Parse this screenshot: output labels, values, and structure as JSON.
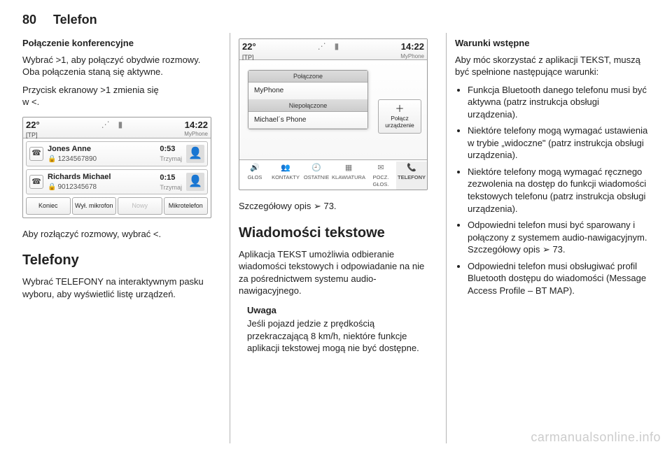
{
  "header": {
    "pagenum": "80",
    "title": "Telefon"
  },
  "col1": {
    "h_conference": "Połączenie konferencyjne",
    "p_conf1_a": "Wybrać ",
    "p_conf1_sym": ">1",
    "p_conf1_b": ", aby połączyć obydwie rozmowy. Oba połączenia staną się aktywne.",
    "p_conf2_a": "Przycisk ekranowy ",
    "p_conf2_sym1": ">1",
    "p_conf2_b": " zmienia się",
    "p_conf2_c": "w ",
    "p_conf2_sym2": "<",
    "p_conf2_d": ".",
    "p_split_a": "Aby rozłączyć rozmowy, wybrać ",
    "p_split_sym": "<",
    "p_split_b": ".",
    "h_phones": "Telefony",
    "p_phones": "Wybrać TELEFONY na interaktywnym pasku wyboru, aby wyświetlić listę urządzeń."
  },
  "shot1": {
    "temp": "22°",
    "tp": "[TP]",
    "time": "14:22",
    "sub": "MyPhone",
    "rows": [
      {
        "name": "Jones Anne",
        "number": "1234567890",
        "duration": "0:53",
        "hold": "Trzymaj"
      },
      {
        "name": "Richards Michael",
        "number": "9012345678",
        "duration": "0:15",
        "hold": "Trzymaj"
      }
    ],
    "buttons": [
      "Koniec",
      "Wył. mikrofon",
      "Nowy",
      "Mikrotelefon"
    ]
  },
  "col2": {
    "p_detail_a": "Szczegółowy opis ",
    "p_detail_sym": "➢",
    "p_detail_b": " 73.",
    "h_text": "Wiadomości tekstowe",
    "p_text1": "Aplikacja TEKST umożliwia odbieranie wiadomości tekstowych i odpowiadanie na nie za pośrednictwem systemu audio-nawigacyjnego.",
    "note_title": "Uwaga",
    "note_body": "Jeśli pojazd jedzie z prędkością przekraczającą 8 km/h, niektóre funkcje aplikacji tekstowej mogą nie być dostępne."
  },
  "shot2": {
    "temp": "22°",
    "tp": "[TP]",
    "time": "14:22",
    "sub": "MyPhone",
    "group1": "Połączone",
    "item1": "MyPhone",
    "group2": "Niepołączone",
    "item2": "Michael´s Phone",
    "connect_label": "Połącz urządzenie",
    "tabs": [
      {
        "icon": "🔊",
        "label": "GŁOS"
      },
      {
        "icon": "👥",
        "label": "KONTAKTY"
      },
      {
        "icon": "🕘",
        "label": "OSTATNIE"
      },
      {
        "icon": "▦",
        "label": "KLAWIATURA"
      },
      {
        "icon": "✉",
        "label": "POCZ. GŁOS."
      },
      {
        "icon": "📞",
        "label": "TELEFONY",
        "active": true
      }
    ]
  },
  "col3": {
    "h_prereq": "Warunki wstępne",
    "p_prereq": "Aby móc skorzystać z aplikacji TEKST, muszą być spełnione następujące warunki:",
    "items": [
      "Funkcja Bluetooth danego telefonu musi być aktywna (patrz instrukcja obsługi urządzenia).",
      "Niektóre telefony mogą wymagać ustawienia w trybie „widoczne\" (patrz instrukcja obsługi urządzenia).",
      "Niektóre telefony mogą wymagać ręcznego zezwolenia na dostęp do funkcji wiadomości tekstowych telefonu (patrz instrukcja obsługi urządzenia).",
      "Odpowiedni telefon musi być sparowany i połączony z systemem audio-nawigacyjnym. Szczegółowy opis ➢ 73.",
      "Odpowiedni telefon musi obsługiwać profil Bluetooth dostępu do wiadomości (Message Access Profile – BT MAP)."
    ]
  },
  "watermark": "carmanualsonline.info"
}
